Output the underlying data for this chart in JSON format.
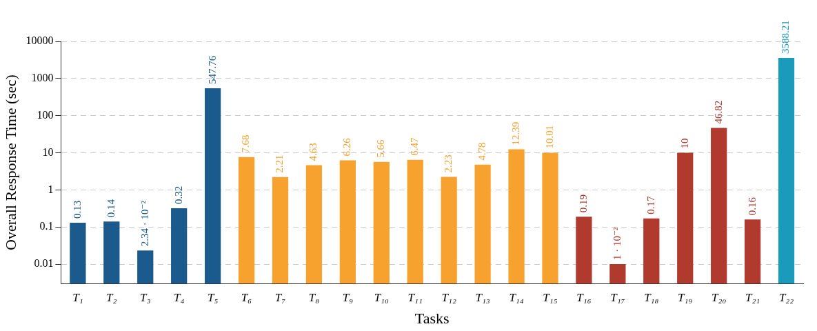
{
  "chart_data": {
    "type": "bar",
    "xlabel": "Tasks",
    "ylabel": "Overall Response Time (sec)",
    "categories": [
      "T₁",
      "T₂",
      "T₃",
      "T₄",
      "T₅",
      "T₆",
      "T₇",
      "T₈",
      "T₉",
      "T₁₀",
      "T₁₁",
      "T₁₂",
      "T₁₃",
      "T₁₄",
      "T₁₅",
      "T₁₆",
      "T₁₇",
      "T₁₈",
      "T₁₉",
      "T₂₀",
      "T₂₁",
      "T₂₂"
    ],
    "values": [
      0.13,
      0.14,
      0.0234,
      0.32,
      547.76,
      7.68,
      2.21,
      4.63,
      6.26,
      5.66,
      6.47,
      2.23,
      4.78,
      12.39,
      10.01,
      0.19,
      0.01,
      0.17,
      10,
      46.82,
      0.16,
      3588.21
    ],
    "value_labels": [
      "0.13",
      "0.14",
      "2.34 · 10⁻²",
      "0.32",
      "547.76",
      "7.68",
      "2.21",
      "4.63",
      "6.26",
      "5.66",
      "6.47",
      "2.23",
      "4.78",
      "12.39",
      "10.01",
      "0.19",
      "1 · 10⁻²",
      "0.17",
      "10",
      "46.82",
      "0.16",
      "3588.21"
    ],
    "colors": [
      "#1a5a8c",
      "#1a5a8c",
      "#1a5a8c",
      "#1a5a8c",
      "#1a5a8c",
      "#f7a22e",
      "#f7a22e",
      "#f7a22e",
      "#f7a22e",
      "#f7a22e",
      "#f7a22e",
      "#f7a22e",
      "#f7a22e",
      "#f7a22e",
      "#f7a22e",
      "#b03a2e",
      "#b03a2e",
      "#b03a2e",
      "#b03a2e",
      "#b03a2e",
      "#b03a2e",
      "#1b9bbb"
    ],
    "log": "y",
    "ylim": [
      0.003,
      10000
    ],
    "yticks": [
      0.01,
      0.1,
      1,
      10,
      100,
      1000,
      10000
    ],
    "grid": "y",
    "legend": false
  }
}
